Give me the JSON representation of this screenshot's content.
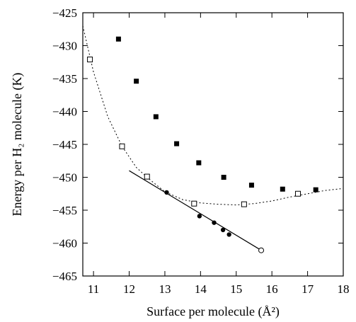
{
  "chart_data": {
    "type": "scatter",
    "xlabel": "Surface per molecule (Å²)",
    "ylabel": "Energy per H₂ molecule (K)",
    "xlim": [
      10.7,
      18
    ],
    "ylim": [
      -465,
      -425
    ],
    "xticks": [
      11,
      12,
      13,
      14,
      15,
      16,
      17,
      18
    ],
    "yticks": [
      -465,
      -460,
      -455,
      -450,
      -445,
      -440,
      -435,
      -430,
      -425
    ],
    "grid": false,
    "legend": "none",
    "series": [
      {
        "marker": "filled-square",
        "points": [
          [
            11.7,
            -429.0
          ],
          [
            12.2,
            -435.4
          ],
          [
            12.75,
            -440.8
          ],
          [
            13.33,
            -444.9
          ],
          [
            13.95,
            -447.8
          ],
          [
            14.65,
            -450.0
          ],
          [
            15.43,
            -451.2
          ],
          [
            16.3,
            -451.8
          ],
          [
            17.23,
            -451.9
          ]
        ]
      },
      {
        "marker": "open-square",
        "points": [
          [
            10.9,
            -432.1
          ],
          [
            11.8,
            -445.3
          ],
          [
            12.5,
            -449.9
          ],
          [
            13.82,
            -454.0
          ],
          [
            15.22,
            -454.1
          ],
          [
            16.73,
            -452.5
          ]
        ]
      },
      {
        "marker": "filled-circle",
        "points": [
          [
            13.05,
            -452.3
          ],
          [
            13.97,
            -455.9
          ],
          [
            14.38,
            -456.9
          ],
          [
            14.63,
            -458.0
          ],
          [
            14.8,
            -458.7
          ]
        ]
      },
      {
        "marker": "open-circle",
        "points": [
          [
            15.7,
            -461.1
          ]
        ]
      },
      {
        "line": "solid",
        "points": [
          [
            12.0,
            -449.0
          ],
          [
            15.7,
            -461.1
          ]
        ]
      },
      {
        "line": "dotted",
        "points": [
          [
            10.7,
            -427.0
          ],
          [
            11.0,
            -434.0
          ],
          [
            11.4,
            -440.8
          ],
          [
            11.8,
            -445.3
          ],
          [
            12.2,
            -448.5
          ],
          [
            12.5,
            -450.0
          ],
          [
            13.0,
            -452.2
          ],
          [
            13.5,
            -453.4
          ],
          [
            14.0,
            -453.9
          ],
          [
            14.5,
            -454.1
          ],
          [
            15.0,
            -454.2
          ],
          [
            15.5,
            -454.0
          ],
          [
            16.0,
            -453.6
          ],
          [
            16.5,
            -453.0
          ],
          [
            17.0,
            -452.5
          ],
          [
            17.5,
            -452.0
          ],
          [
            18.0,
            -451.7
          ]
        ]
      }
    ]
  }
}
